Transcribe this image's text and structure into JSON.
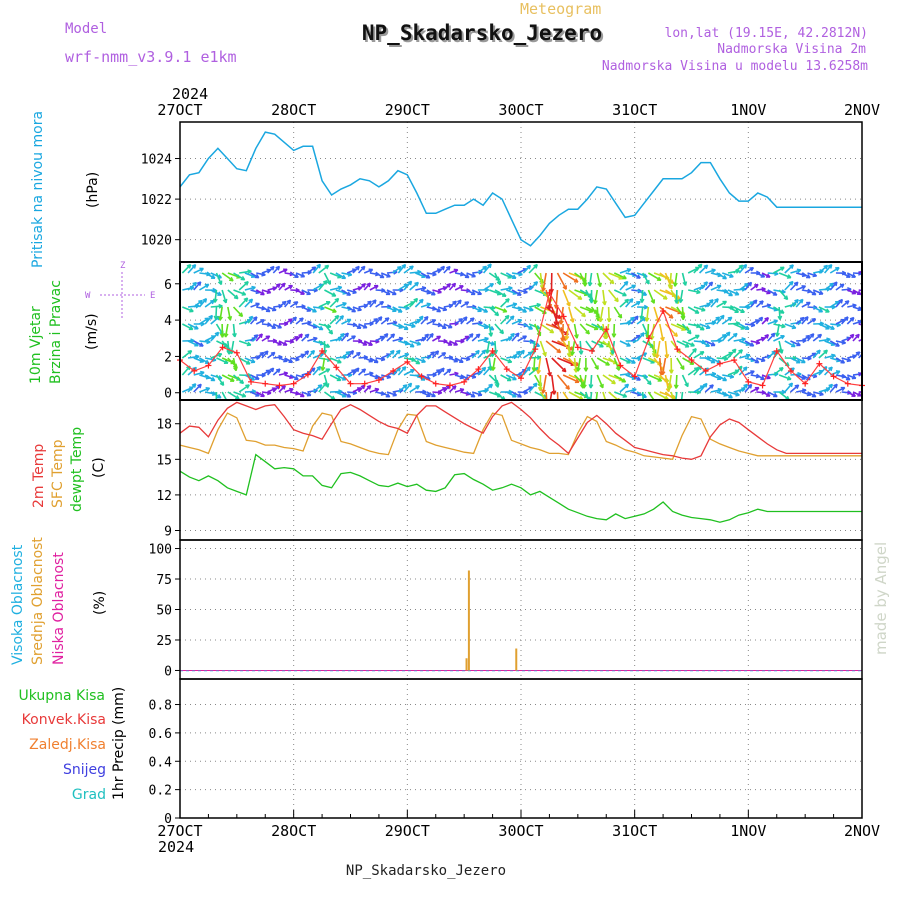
{
  "header": {
    "model_label": "Model",
    "model_name": "wrf-nmm_v3.9.1  e1km",
    "title": "NP_Skadarsko_Jezero",
    "subtitle": "Meteogram",
    "coords": "lon,lat (19.15E, 42.2812N)",
    "altitude": "Nadmorska Visina 2m",
    "model_altitude": "Nadmorska Visina u modelu 13.6258m",
    "footer_station": "NP_Skadarsko_Jezero",
    "watermark": "made by Angel",
    "year": "2024"
  },
  "colors": {
    "pressure": "#1aa7e0",
    "temp2m": "#e83a3a",
    "sfctemp": "#e0a030",
    "dewpt": "#20c020",
    "high_cloud": "#20b0e0",
    "mid_cloud": "#e0a030",
    "low_cloud": "#e020a0",
    "wind_label": "#20c020",
    "axis": "#000000",
    "header_purple": "#b060e0",
    "header_gold": "#e8c060"
  },
  "x_axis": {
    "tick_labels": [
      "27OCT",
      "28OCT",
      "29OCT",
      "30OCT",
      "31OCT",
      "1NOV",
      "2NOV"
    ],
    "range_hours": [
      0,
      144
    ]
  },
  "chart_data": [
    {
      "type": "line",
      "id": "pressure",
      "ylabel_lines": [
        "Pritisak na nivou mora"
      ],
      "unit": "(hPa)",
      "ytick_labels": [
        "1020",
        "1022",
        "1024"
      ],
      "ylim": [
        1018.9,
        1025.8
      ],
      "grid": true,
      "series": [
        {
          "x": [
            0,
            2,
            4,
            6,
            8,
            10,
            12,
            14,
            16,
            18,
            20,
            22,
            24,
            26,
            28,
            30,
            32,
            34,
            36,
            38,
            40,
            42,
            44,
            46,
            48,
            50,
            52,
            54,
            56,
            58,
            60,
            62,
            64,
            66,
            68,
            70,
            72,
            74,
            76,
            78,
            80,
            82,
            84,
            86,
            88,
            90,
            92,
            94,
            96,
            98,
            100,
            102,
            104,
            106,
            108,
            110,
            112,
            114,
            116,
            118,
            120,
            122,
            124,
            126,
            128,
            130,
            132,
            134,
            136,
            138,
            140,
            142,
            144
          ],
          "y": [
            1022.6,
            1023.2,
            1023.3,
            1024.0,
            1024.5,
            1024.0,
            1023.5,
            1023.4,
            1024.5,
            1025.3,
            1025.2,
            1024.8,
            1024.4,
            1024.6,
            1024.6,
            1022.9,
            1022.2,
            1022.5,
            1022.7,
            1023.0,
            1022.9,
            1022.6,
            1022.9,
            1023.4,
            1023.2,
            1022.3,
            1021.3,
            1021.3,
            1021.5,
            1021.7,
            1021.7,
            1022.0,
            1021.7,
            1022.3,
            1022.0,
            1021.0,
            1020.0,
            1019.7,
            1020.2,
            1020.8,
            1021.2,
            1021.5,
            1021.5,
            1022.0,
            1022.6,
            1022.5,
            1021.8,
            1021.1,
            1021.2,
            1021.8,
            1022.4,
            1023.0,
            1023.0,
            1023.0,
            1023.3,
            1023.8,
            1023.8,
            1023.0,
            1022.3,
            1021.9,
            1021.9,
            1022.3,
            1022.1,
            1021.6,
            1021.6,
            1021.6,
            1021.6,
            1021.6,
            1021.6,
            1021.6,
            1021.6,
            1021.6,
            1021.6
          ]
        }
      ]
    },
    {
      "type": "line",
      "id": "wind",
      "ylabel_lines": [
        "10m Vjetar",
        "Brzina i Pravac"
      ],
      "unit": "(m/s)",
      "compass_label": "Z",
      "compass_dirs": [
        "W",
        "E",
        "S",
        "N"
      ],
      "ytick_labels": [
        "0",
        "2",
        "4",
        "6"
      ],
      "ylim": [
        -0.4,
        7.2
      ],
      "grid": true,
      "series": [
        {
          "name": "wind speed",
          "x": [
            0,
            3,
            6,
            9,
            12,
            15,
            18,
            21,
            24,
            27,
            30,
            33,
            36,
            39,
            42,
            45,
            48,
            51,
            54,
            57,
            60,
            63,
            66,
            69,
            72,
            75,
            78,
            81,
            84,
            87,
            90,
            93,
            96,
            99,
            102,
            105,
            108,
            111,
            114,
            117,
            120,
            123,
            126,
            129,
            132,
            135,
            138,
            141,
            144
          ],
          "y": [
            1.8,
            1.2,
            1.5,
            2.5,
            2.2,
            0.6,
            0.5,
            0.4,
            0.5,
            1.0,
            2.3,
            1.4,
            0.5,
            0.5,
            0.7,
            1.2,
            1.7,
            0.9,
            0.5,
            0.4,
            0.6,
            1.3,
            2.3,
            1.3,
            0.8,
            2.4,
            5.5,
            4.2,
            2.5,
            2.3,
            3.5,
            1.5,
            0.9,
            3.0,
            4.5,
            2.4,
            1.8,
            1.2,
            1.6,
            1.8,
            0.6,
            0.4,
            2.3,
            1.2,
            0.5,
            1.6,
            0.9,
            0.5,
            0.4
          ]
        }
      ]
    },
    {
      "type": "line",
      "id": "temperature",
      "ylabel_lines": [
        "2m Temp",
        "SFC Temp",
        "dewpt Temp"
      ],
      "unit": "(C)",
      "ytick_labels": [
        "9",
        "12",
        "15",
        "18"
      ],
      "ylim": [
        8.2,
        20.0
      ],
      "grid": true,
      "series": [
        {
          "name": "2m Temp",
          "x": [
            0,
            2,
            4,
            6,
            8,
            10,
            12,
            14,
            16,
            18,
            20,
            22,
            24,
            26,
            28,
            30,
            32,
            34,
            36,
            38,
            40,
            42,
            44,
            46,
            48,
            50,
            52,
            54,
            56,
            58,
            60,
            62,
            64,
            66,
            68,
            70,
            72,
            74,
            76,
            78,
            80,
            82,
            84,
            86,
            88,
            90,
            92,
            94,
            96,
            98,
            100,
            102,
            104,
            106,
            108,
            110,
            112,
            114,
            116,
            118,
            120,
            122,
            124,
            126,
            128,
            130,
            132,
            134,
            136,
            138,
            140,
            142,
            144
          ],
          "y": [
            17.2,
            17.8,
            17.7,
            16.9,
            18.3,
            19.3,
            19.8,
            19.5,
            19.2,
            19.5,
            19.6,
            18.6,
            17.5,
            17.2,
            17.0,
            16.7,
            18.0,
            19.2,
            19.6,
            19.2,
            18.7,
            18.2,
            17.8,
            17.6,
            17.2,
            18.7,
            19.5,
            19.5,
            19.0,
            18.5,
            18.0,
            17.6,
            17.2,
            18.6,
            19.5,
            19.8,
            19.2,
            18.5,
            17.6,
            16.8,
            16.2,
            15.5,
            16.8,
            18.1,
            18.7,
            18.0,
            17.2,
            16.6,
            16.0,
            15.8,
            15.6,
            15.4,
            15.3,
            15.1,
            15.0,
            15.3,
            16.9,
            17.9,
            18.4,
            18.1,
            17.5,
            16.9,
            16.3,
            15.8,
            15.5,
            15.5,
            15.5,
            15.5,
            15.5,
            15.5,
            15.5,
            15.5,
            15.5
          ]
        },
        {
          "name": "SFC Temp",
          "x": [
            0,
            2,
            4,
            6,
            8,
            10,
            12,
            14,
            16,
            18,
            20,
            22,
            24,
            26,
            28,
            30,
            32,
            34,
            36,
            38,
            40,
            42,
            44,
            46,
            48,
            50,
            52,
            54,
            56,
            58,
            60,
            62,
            64,
            66,
            68,
            70,
            72,
            74,
            76,
            78,
            80,
            82,
            84,
            86,
            88,
            90,
            92,
            94,
            96,
            98,
            100,
            102,
            104,
            106,
            108,
            110,
            112,
            114,
            116,
            118,
            120,
            122,
            124,
            126,
            128,
            130,
            132,
            134,
            136,
            138,
            140,
            142,
            144
          ],
          "y": [
            16.2,
            16.0,
            15.8,
            15.5,
            17.5,
            18.9,
            18.5,
            16.6,
            16.5,
            16.2,
            16.2,
            16.0,
            15.9,
            15.7,
            17.8,
            18.9,
            18.7,
            16.5,
            16.3,
            16.0,
            15.7,
            15.5,
            15.4,
            17.5,
            18.8,
            18.7,
            16.5,
            16.2,
            16.0,
            15.8,
            15.6,
            15.5,
            17.5,
            18.9,
            18.7,
            16.6,
            16.3,
            16.0,
            15.8,
            15.5,
            15.5,
            15.4,
            17.2,
            18.6,
            18.2,
            16.5,
            16.2,
            15.8,
            15.6,
            15.3,
            15.2,
            15.1,
            15.0,
            17.0,
            18.6,
            18.4,
            16.7,
            16.3,
            16.0,
            15.7,
            15.5,
            15.3,
            15.3,
            15.3,
            15.3,
            15.3,
            15.3,
            15.3,
            15.3,
            15.3,
            15.3,
            15.3,
            15.3
          ]
        },
        {
          "name": "dewpt Temp",
          "x": [
            0,
            2,
            4,
            6,
            8,
            10,
            12,
            14,
            16,
            18,
            20,
            22,
            24,
            26,
            28,
            30,
            32,
            34,
            36,
            38,
            40,
            42,
            44,
            46,
            48,
            50,
            52,
            54,
            56,
            58,
            60,
            62,
            64,
            66,
            68,
            70,
            72,
            74,
            76,
            78,
            80,
            82,
            84,
            86,
            88,
            90,
            92,
            94,
            96,
            98,
            100,
            102,
            104,
            106,
            108,
            110,
            112,
            114,
            116,
            118,
            120,
            122,
            124,
            126,
            128,
            130,
            132,
            134,
            136,
            138,
            140,
            142,
            144
          ],
          "y": [
            14.0,
            13.5,
            13.2,
            13.6,
            13.2,
            12.6,
            12.3,
            12.0,
            15.4,
            14.8,
            14.2,
            14.3,
            14.2,
            13.6,
            13.6,
            12.8,
            12.6,
            13.8,
            13.9,
            13.6,
            13.2,
            12.8,
            12.7,
            13.0,
            12.7,
            12.9,
            12.4,
            12.3,
            12.6,
            13.7,
            13.8,
            13.3,
            12.9,
            12.4,
            12.6,
            12.9,
            12.6,
            12.0,
            12.3,
            11.8,
            11.3,
            10.8,
            10.5,
            10.2,
            10.0,
            9.9,
            10.4,
            10.0,
            10.2,
            10.4,
            10.8,
            11.4,
            10.6,
            10.3,
            10.1,
            10.0,
            9.9,
            9.7,
            9.9,
            10.3,
            10.5,
            10.8,
            10.6,
            10.6,
            10.6,
            10.6,
            10.6,
            10.6,
            10.6,
            10.6,
            10.6,
            10.6,
            10.6
          ]
        }
      ]
    },
    {
      "type": "bar",
      "id": "clouds",
      "ylabel_lines": [
        "Visoka Oblacnost",
        "Srednja Oblacnost",
        "Niska Oblacnost"
      ],
      "unit": "(%)",
      "ytick_labels": [
        "0",
        "25",
        "50",
        "75",
        "100"
      ],
      "ylim": [
        -7,
        107
      ],
      "grid": true,
      "series": [
        {
          "name": "Visoka Oblacnost",
          "x": [],
          "values": []
        },
        {
          "name": "Srednja Oblacnost",
          "x": [
            60.5,
            61.0,
            71.0
          ],
          "values": [
            10,
            82,
            18
          ]
        },
        {
          "name": "Niska Oblacnost",
          "x": [],
          "values": []
        }
      ]
    },
    {
      "type": "bar",
      "id": "precip",
      "ylabel_lines": [
        "1hr Precip"
      ],
      "unit": "(mm)",
      "legend": [
        "Ukupna Kisa",
        "Konvek.Kisa",
        "Zaledj.Kisa",
        "Snijeg",
        "Grad"
      ],
      "ytick_labels": [
        "0",
        "0.2",
        "0.4",
        "0.6",
        "0.8"
      ],
      "ylim": [
        0,
        0.98
      ],
      "grid": true,
      "series": [
        {
          "name": "Ukupna Kisa",
          "x": [],
          "values": []
        }
      ]
    }
  ]
}
